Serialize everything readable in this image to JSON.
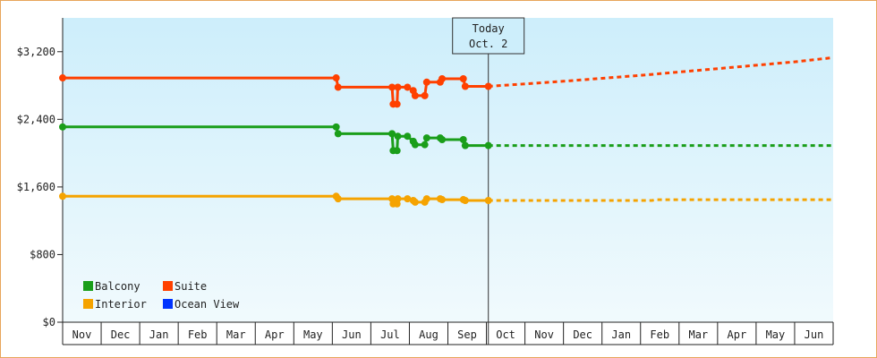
{
  "chart_data": {
    "type": "line",
    "title": "",
    "xlabel": "",
    "ylabel": "",
    "ylim": [
      0,
      3600
    ],
    "y_ticks": [
      {
        "value": 0,
        "label": "$0"
      },
      {
        "value": 800,
        "label": "$800"
      },
      {
        "value": 1600,
        "label": "$1,600"
      },
      {
        "value": 2400,
        "label": "$2,400"
      },
      {
        "value": 3200,
        "label": "$3,200"
      }
    ],
    "x_range": [
      0,
      20
    ],
    "months": [
      "Nov",
      "Dec",
      "Jan",
      "Feb",
      "Mar",
      "Apr",
      "May",
      "Jun",
      "Jul",
      "Aug",
      "Sep",
      "Oct",
      "Nov",
      "Dec",
      "Jan",
      "Feb",
      "Mar",
      "Apr",
      "May",
      "Jun"
    ],
    "today": {
      "x": 11.05,
      "line1": "Today",
      "line2": "Oct. 2"
    },
    "grid": false,
    "legend_position": "bottom-left",
    "legend": [
      {
        "name": "Balcony",
        "color": "#1a9e1a"
      },
      {
        "name": "Suite",
        "color": "#ff4000"
      },
      {
        "name": "Interior",
        "color": "#f5a300"
      },
      {
        "name": "Ocean View",
        "color": "#0033ff"
      }
    ],
    "series": [
      {
        "name": "Suite",
        "color": "#ff4000",
        "points": [
          [
            0,
            2890
          ],
          [
            7.1,
            2890
          ],
          [
            7.15,
            2780
          ],
          [
            8.55,
            2780
          ],
          [
            8.58,
            2580
          ],
          [
            8.68,
            2580
          ],
          [
            8.7,
            2780
          ],
          [
            8.95,
            2780
          ],
          [
            9.1,
            2740
          ],
          [
            9.15,
            2680
          ],
          [
            9.4,
            2680
          ],
          [
            9.45,
            2840
          ],
          [
            9.8,
            2840
          ],
          [
            9.85,
            2880
          ],
          [
            10.4,
            2880
          ],
          [
            10.45,
            2790
          ],
          [
            11.05,
            2790
          ]
        ],
        "markers": [
          0,
          7.1,
          7.15,
          8.55,
          8.58,
          8.68,
          8.7,
          8.95,
          9.1,
          9.15,
          9.4,
          9.45,
          9.8,
          9.85,
          10.4,
          10.45,
          11.05
        ],
        "forecast": [
          [
            11.05,
            2790
          ],
          [
            13,
            2850
          ],
          [
            15,
            2920
          ],
          [
            17,
            3000
          ],
          [
            19,
            3080
          ],
          [
            20,
            3130
          ]
        ]
      },
      {
        "name": "Balcony",
        "color": "#1a9e1a",
        "points": [
          [
            0,
            2310
          ],
          [
            7.1,
            2310
          ],
          [
            7.15,
            2230
          ],
          [
            8.55,
            2230
          ],
          [
            8.58,
            2030
          ],
          [
            8.68,
            2030
          ],
          [
            8.7,
            2200
          ],
          [
            8.95,
            2200
          ],
          [
            9.1,
            2140
          ],
          [
            9.15,
            2100
          ],
          [
            9.4,
            2100
          ],
          [
            9.45,
            2180
          ],
          [
            9.8,
            2180
          ],
          [
            9.85,
            2160
          ],
          [
            10.4,
            2160
          ],
          [
            10.45,
            2090
          ],
          [
            11.05,
            2090
          ]
        ],
        "markers": [
          0,
          7.1,
          7.15,
          8.55,
          8.58,
          8.68,
          8.7,
          8.95,
          9.1,
          9.15,
          9.4,
          9.45,
          9.8,
          9.85,
          10.4,
          10.45,
          11.05
        ],
        "forecast": [
          [
            11.05,
            2090
          ],
          [
            20,
            2090
          ]
        ]
      },
      {
        "name": "Interior",
        "color": "#f5a300",
        "points": [
          [
            0,
            1490
          ],
          [
            7.1,
            1490
          ],
          [
            7.15,
            1460
          ],
          [
            8.55,
            1460
          ],
          [
            8.58,
            1400
          ],
          [
            8.68,
            1400
          ],
          [
            8.7,
            1460
          ],
          [
            8.95,
            1460
          ],
          [
            9.1,
            1440
          ],
          [
            9.15,
            1420
          ],
          [
            9.4,
            1420
          ],
          [
            9.45,
            1460
          ],
          [
            9.8,
            1460
          ],
          [
            9.85,
            1450
          ],
          [
            10.4,
            1450
          ],
          [
            10.45,
            1440
          ],
          [
            11.05,
            1440
          ]
        ],
        "markers": [
          0,
          7.1,
          7.15,
          8.55,
          8.58,
          8.68,
          8.7,
          8.95,
          9.1,
          9.15,
          9.4,
          9.45,
          9.8,
          9.85,
          10.4,
          10.45,
          11.05
        ],
        "forecast": [
          [
            11.05,
            1440
          ],
          [
            15.3,
            1440
          ],
          [
            15.4,
            1450
          ],
          [
            20,
            1450
          ]
        ]
      }
    ]
  }
}
